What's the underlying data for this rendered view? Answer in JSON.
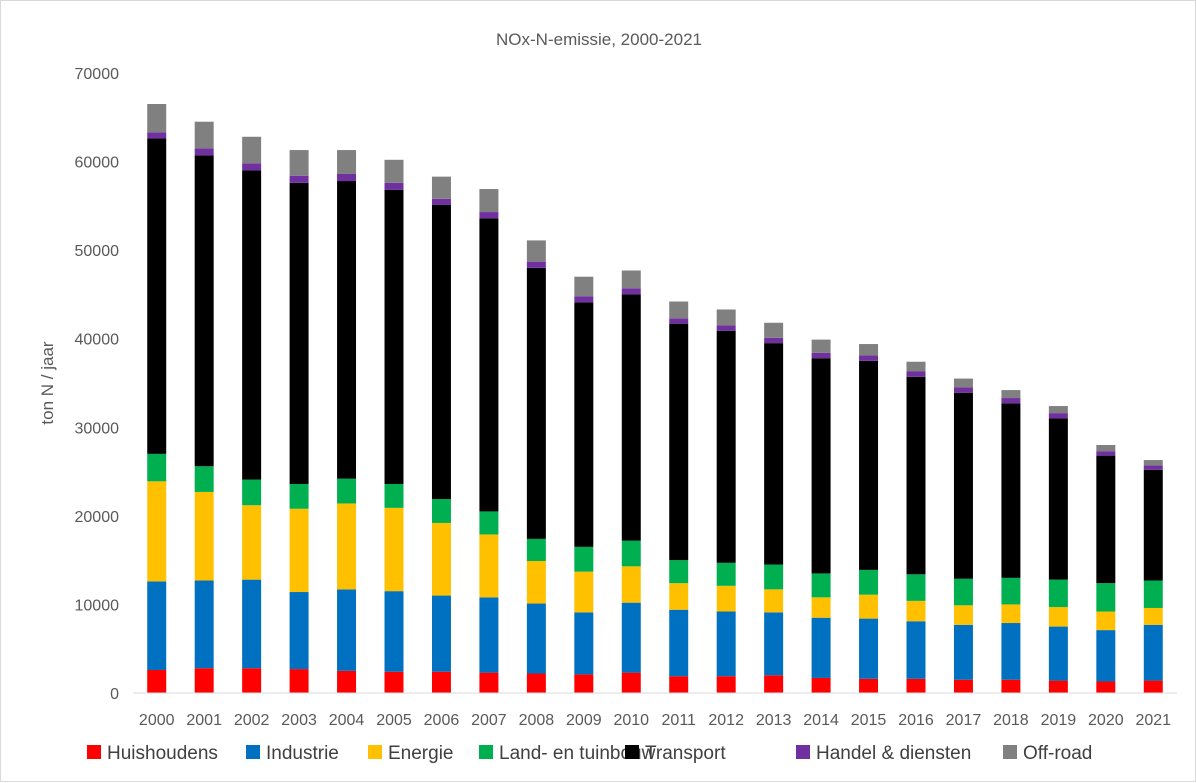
{
  "chart_data": {
    "type": "bar",
    "stacked": true,
    "title": "NOx-N-emissie, 2000-2021",
    "xlabel": "",
    "ylabel": "ton N / jaar",
    "ylim": [
      0,
      70000
    ],
    "yticks": [
      "0",
      "10000",
      "20000",
      "30000",
      "40000",
      "50000",
      "60000",
      "70000"
    ],
    "grid": false,
    "legend_position": "bottom",
    "categories": [
      "2000",
      "2001",
      "2002",
      "2003",
      "2004",
      "2005",
      "2006",
      "2007",
      "2008",
      "2009",
      "2010",
      "2011",
      "2012",
      "2013",
      "2014",
      "2015",
      "2016",
      "2017",
      "2018",
      "2019",
      "2020",
      "2021"
    ],
    "series": [
      {
        "name": "Huishoudens",
        "color": "#ff0000",
        "values": [
          2600,
          2800,
          2800,
          2700,
          2500,
          2400,
          2400,
          2300,
          2200,
          2100,
          2300,
          1900,
          1900,
          2000,
          1700,
          1600,
          1600,
          1500,
          1500,
          1400,
          1300,
          1400
        ]
      },
      {
        "name": "Industrie",
        "color": "#0070c0",
        "values": [
          10000,
          9900,
          10000,
          8700,
          9200,
          9100,
          8600,
          8500,
          7900,
          7000,
          7900,
          7500,
          7300,
          7100,
          6800,
          6800,
          6500,
          6200,
          6400,
          6100,
          5800,
          6300
        ]
      },
      {
        "name": "Energie",
        "color": "#ffc000",
        "values": [
          11300,
          10000,
          8400,
          9400,
          9700,
          9400,
          8200,
          7100,
          4800,
          4600,
          4100,
          3000,
          2900,
          2600,
          2300,
          2700,
          2300,
          2200,
          2100,
          2200,
          2100,
          1900
        ]
      },
      {
        "name": "Land- en tuinbouw",
        "color": "#00b050",
        "values": [
          3100,
          2900,
          2900,
          2800,
          2800,
          2700,
          2700,
          2600,
          2500,
          2800,
          2900,
          2600,
          2600,
          2800,
          2700,
          2800,
          3000,
          3000,
          3000,
          3100,
          3200,
          3100
        ]
      },
      {
        "name": "Transport",
        "color": "#000000",
        "values": [
          35600,
          35100,
          34900,
          34000,
          33600,
          33200,
          33200,
          33100,
          30600,
          27600,
          27800,
          26700,
          26200,
          25000,
          24300,
          23600,
          22300,
          21000,
          19700,
          18200,
          14400,
          12500
        ]
      },
      {
        "name": "Handel & diensten",
        "color": "#7030a0",
        "values": [
          700,
          800,
          800,
          800,
          800,
          800,
          700,
          700,
          700,
          700,
          700,
          600,
          600,
          600,
          600,
          600,
          600,
          600,
          600,
          600,
          500,
          500
        ]
      },
      {
        "name": "Off-road",
        "color": "#808080",
        "values": [
          3200,
          3000,
          3000,
          2900,
          2700,
          2600,
          2500,
          2600,
          2400,
          2200,
          2000,
          1900,
          1800,
          1700,
          1500,
          1300,
          1100,
          1000,
          900,
          800,
          700,
          600
        ]
      }
    ]
  }
}
